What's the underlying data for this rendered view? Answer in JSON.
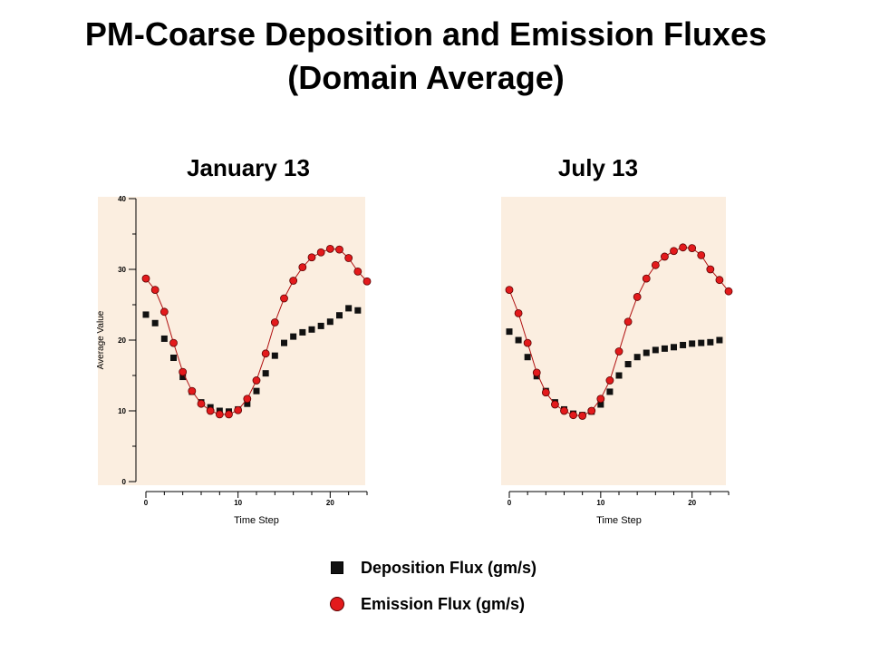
{
  "title": {
    "line1": "PM-Coarse Deposition and Emission Fluxes",
    "line2": "(Domain Average)"
  },
  "legend": {
    "deposition": "Deposition Flux (gm/s)",
    "emission": "Emission Flux (gm/s)"
  },
  "colors": {
    "plot_bg": "#fbeee0",
    "deposition": "#111111",
    "emission": "#e31a1c",
    "line": "#b01010"
  },
  "chart_data": [
    {
      "type": "line",
      "title": "January 13",
      "xlabel": "Time Step",
      "ylabel": "Average Value",
      "xlim": [
        0,
        24
      ],
      "ylim": [
        0,
        40
      ],
      "xticks": [
        "0",
        "10",
        "20"
      ],
      "yticks": [
        "0",
        "10",
        "20",
        "30",
        "40"
      ],
      "series": [
        {
          "name": "Deposition Flux (gm/s)",
          "marker": "square",
          "x": [
            0,
            1,
            2,
            3,
            4,
            5,
            6,
            7,
            8,
            9,
            10,
            11,
            12,
            13,
            14,
            15,
            16,
            17,
            18,
            19,
            20,
            21,
            22,
            23
          ],
          "values": [
            23.6,
            22.4,
            20.2,
            17.5,
            14.8,
            12.7,
            11.2,
            10.5,
            10.0,
            9.9,
            10.2,
            11.0,
            12.8,
            15.3,
            17.8,
            19.6,
            20.5,
            21.1,
            21.5,
            22.0,
            22.6,
            23.5,
            24.5,
            24.2
          ]
        },
        {
          "name": "Emission Flux (gm/s)",
          "marker": "circle",
          "x": [
            0,
            1,
            2,
            3,
            4,
            5,
            6,
            7,
            8,
            9,
            10,
            11,
            12,
            13,
            14,
            15,
            16,
            17,
            18,
            19,
            20,
            21,
            22,
            23,
            24
          ],
          "values": [
            28.7,
            27.1,
            24.0,
            19.6,
            15.5,
            12.8,
            11.0,
            10.0,
            9.5,
            9.5,
            10.1,
            11.7,
            14.3,
            18.1,
            22.5,
            25.9,
            28.4,
            30.3,
            31.7,
            32.4,
            32.9,
            32.8,
            31.6,
            29.7,
            28.3
          ]
        }
      ]
    },
    {
      "type": "line",
      "title": "July 13",
      "xlabel": "Time Step",
      "ylabel": "",
      "xlim": [
        0,
        24
      ],
      "ylim": [
        0,
        40
      ],
      "xticks": [
        "0",
        "10",
        "20"
      ],
      "yticks": [],
      "series": [
        {
          "name": "Deposition Flux (gm/s)",
          "marker": "square",
          "x": [
            0,
            1,
            2,
            3,
            4,
            5,
            6,
            7,
            8,
            9,
            10,
            11,
            12,
            13,
            14,
            15,
            16,
            17,
            18,
            19,
            20,
            21,
            22,
            23
          ],
          "values": [
            21.2,
            20.0,
            17.6,
            14.9,
            12.8,
            11.2,
            10.2,
            9.6,
            9.4,
            9.9,
            10.9,
            12.7,
            15.0,
            16.6,
            17.6,
            18.2,
            18.6,
            18.8,
            19.0,
            19.3,
            19.5,
            19.6,
            19.7,
            20.0
          ]
        },
        {
          "name": "Emission Flux (gm/s)",
          "marker": "circle",
          "x": [
            0,
            1,
            2,
            3,
            4,
            5,
            6,
            7,
            8,
            9,
            10,
            11,
            12,
            13,
            14,
            15,
            16,
            17,
            18,
            19,
            20,
            21,
            22,
            23,
            24
          ],
          "values": [
            27.1,
            23.8,
            19.6,
            15.4,
            12.6,
            10.9,
            10.0,
            9.4,
            9.3,
            10.0,
            11.7,
            14.3,
            18.4,
            22.6,
            26.1,
            28.7,
            30.6,
            31.8,
            32.6,
            33.1,
            33.0,
            32.0,
            30.0,
            28.5,
            26.9
          ]
        }
      ]
    }
  ]
}
